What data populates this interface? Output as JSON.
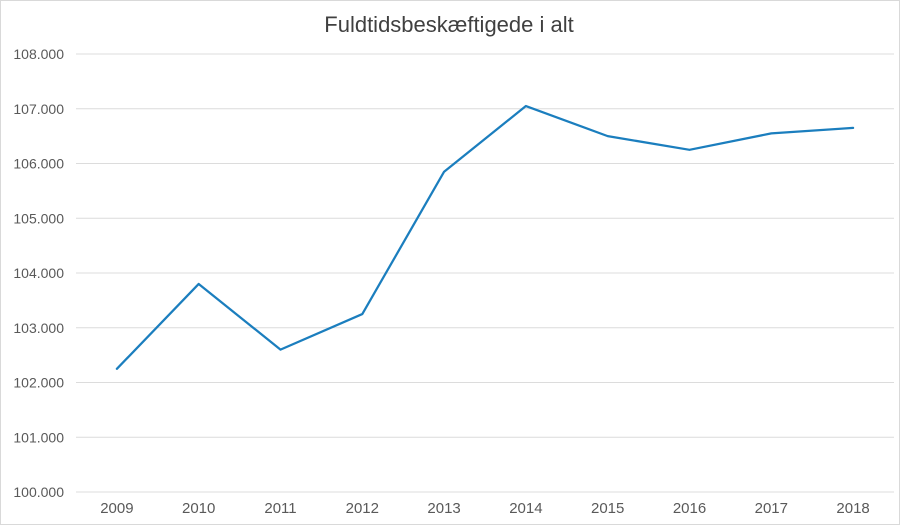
{
  "chart_data": {
    "type": "line",
    "title": "Fuldtidsbeskæftigede i alt",
    "categories": [
      "2009",
      "2010",
      "2011",
      "2012",
      "2013",
      "2014",
      "2015",
      "2016",
      "2017",
      "2018"
    ],
    "values": [
      102250,
      103800,
      102600,
      103250,
      105850,
      107050,
      106500,
      106250,
      106550,
      106650
    ],
    "ylim": [
      100000,
      108000
    ],
    "ytick_step": 1000,
    "ytick_labels": [
      "100.000",
      "101.000",
      "102.000",
      "103.000",
      "104.000",
      "105.000",
      "106.000",
      "107.000",
      "108.000"
    ],
    "xlabel": "",
    "ylabel": "",
    "grid": "horizontal",
    "legend": "none",
    "colors": {
      "line": "#1b7ebe",
      "gridline": "#dcdcdc",
      "tick_text": "#595959",
      "title_text": "#404040",
      "frame_border": "#d9d9d9",
      "background": "#ffffff"
    }
  }
}
